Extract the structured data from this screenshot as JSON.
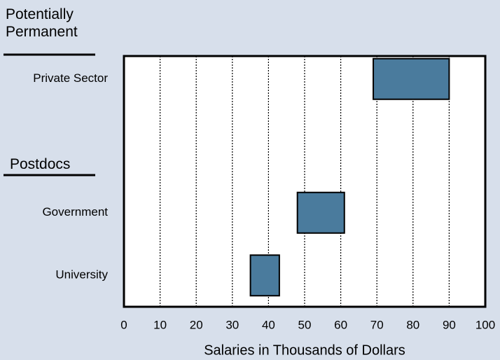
{
  "chart_data": {
    "type": "range_bar",
    "orientation": "horizontal",
    "groups": [
      "Potentially Permanent",
      "Postdocs"
    ],
    "categories": [
      "Private Sector",
      null,
      "Government",
      "University"
    ],
    "starts": [
      69,
      null,
      48,
      35
    ],
    "ends": [
      90,
      null,
      61,
      43
    ],
    "color": "#4a7b9d",
    "xlabel": "Salaries in Thousands of Dollars",
    "xlim": [
      0,
      100
    ],
    "xticks": [
      0,
      10,
      20,
      30,
      40,
      50,
      60,
      70,
      80,
      90,
      100
    ],
    "grid": true
  }
}
